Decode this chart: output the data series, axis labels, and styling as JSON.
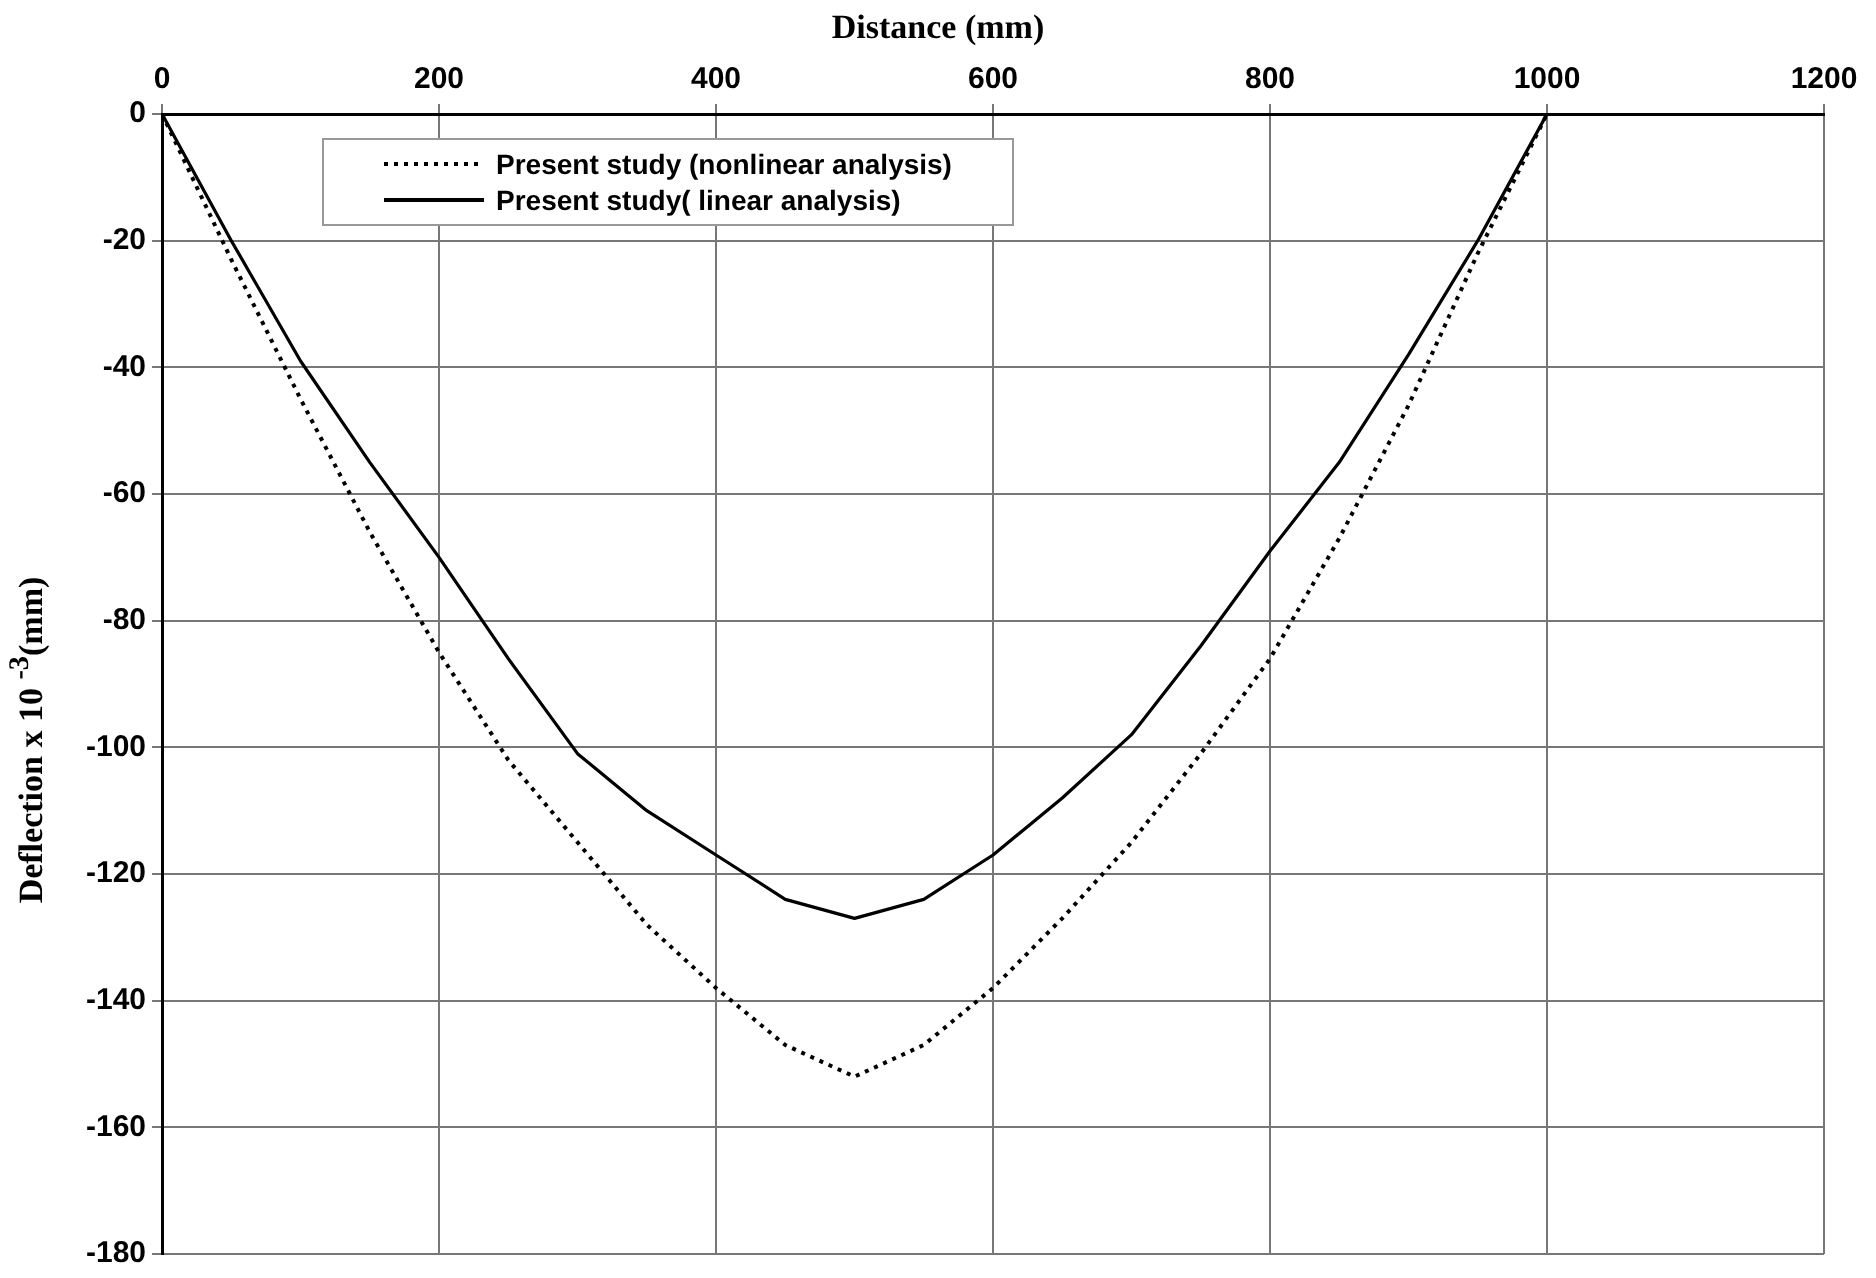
{
  "chart_data": {
    "type": "line",
    "xlabel": "Distance (mm)",
    "ylabel": "Deflection x 10 $^{-3}$(mm)",
    "x": [
      0,
      50,
      100,
      150,
      200,
      250,
      300,
      350,
      400,
      450,
      500,
      550,
      600,
      650,
      700,
      750,
      800,
      850,
      900,
      950,
      1000
    ],
    "series": [
      {
        "name": "Present study (nonlinear analysis)",
        "color": "#000000",
        "line_style": "dotted",
        "values": [
          0,
          -23,
          -45,
          -66,
          -85,
          -102,
          -115,
          -128,
          -138,
          -147,
          -152,
          -147,
          -138,
          -127,
          -115,
          -101,
          -86,
          -67,
          -46,
          -22,
          0
        ]
      },
      {
        "name": "Present study( linear analysis)",
        "color": "#000000",
        "line_style": "solid",
        "values": [
          0,
          -20,
          -39,
          -55,
          -70,
          -86,
          -101,
          -110,
          -117,
          -124,
          -127,
          -124,
          -117,
          -108,
          -98,
          -84,
          -69,
          -55,
          -38,
          -20,
          0
        ]
      }
    ],
    "xlim": [
      0,
      1200
    ],
    "xticks": [
      0,
      200,
      400,
      600,
      800,
      1000,
      1200
    ],
    "ylim": [
      -180,
      0
    ],
    "yticks": [
      -180,
      -160,
      -140,
      -120,
      -100,
      -80,
      -60,
      -40,
      -20,
      0
    ],
    "grid": true,
    "legend": "top",
    "marker": "none"
  }
}
